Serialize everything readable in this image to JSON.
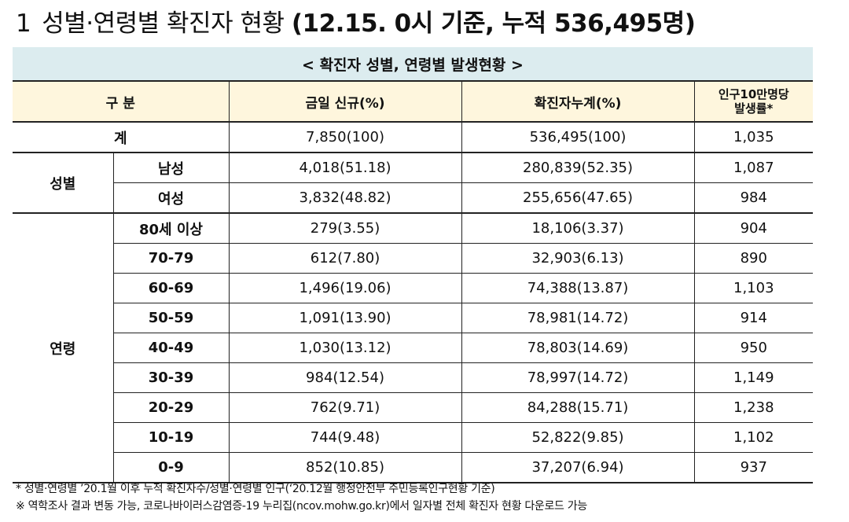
{
  "title": {
    "number": "1",
    "text_regular": "성별·연령별 확진자 현황 ",
    "text_bold": "(12.15. 0시 기준, 누적 536,495명)"
  },
  "caption": "< 확진자 성별, 연령별 발생현황 >",
  "table": {
    "headers": [
      "구 분",
      "금일 신규(%)",
      "확진자누계(%)",
      "인구10만명당\n발생률*"
    ],
    "header_rate_line1": "인구10만명당",
    "header_rate_line2": "발생률*",
    "total": {
      "label": "계",
      "new": "7,850(100)",
      "cumulative": "536,495(100)",
      "rate": "1,035"
    },
    "gender_group": "성별",
    "gender_rows": [
      {
        "label": "남성",
        "new": "4,018(51.18)",
        "cumulative": "280,839(52.35)",
        "rate": "1,087"
      },
      {
        "label": "여성",
        "new": "3,832(48.82)",
        "cumulative": "255,656(47.65)",
        "rate": "984"
      }
    ],
    "age_group": "연령",
    "age_rows": [
      {
        "label": "80세 이상",
        "new": "279(3.55)",
        "cumulative": "18,106(3.37)",
        "rate": "904"
      },
      {
        "label": "70-79",
        "new": "612(7.80)",
        "cumulative": "32,903(6.13)",
        "rate": "890"
      },
      {
        "label": "60-69",
        "new": "1,496(19.06)",
        "cumulative": "74,388(13.87)",
        "rate": "1,103"
      },
      {
        "label": "50-59",
        "new": "1,091(13.90)",
        "cumulative": "78,981(14.72)",
        "rate": "914"
      },
      {
        "label": "40-49",
        "new": "1,030(13.12)",
        "cumulative": "78,803(14.69)",
        "rate": "950"
      },
      {
        "label": "30-39",
        "new": "984(12.54)",
        "cumulative": "78,997(14.72)",
        "rate": "1,149"
      },
      {
        "label": "20-29",
        "new": "762(9.71)",
        "cumulative": "84,288(15.71)",
        "rate": "1,238"
      },
      {
        "label": "10-19",
        "new": "744(9.48)",
        "cumulative": "52,822(9.85)",
        "rate": "1,102"
      },
      {
        "label": "0-9",
        "new": "852(10.85)",
        "cumulative": "37,207(6.94)",
        "rate": "937"
      }
    ]
  },
  "notes": [
    "* 성별·연령별 ’20.1월 이후 누적 확진자수/성별·연령별 인구(‘20.12월 행정안전부 주민등록인구현황 기준)",
    "※ 역학조사 결과 변동 가능, 코로나바이러스감염증-19 누리집(ncov.mohw.go.kr)에서 일자별 전체 확진자 현황 다운로드 가능"
  ]
}
